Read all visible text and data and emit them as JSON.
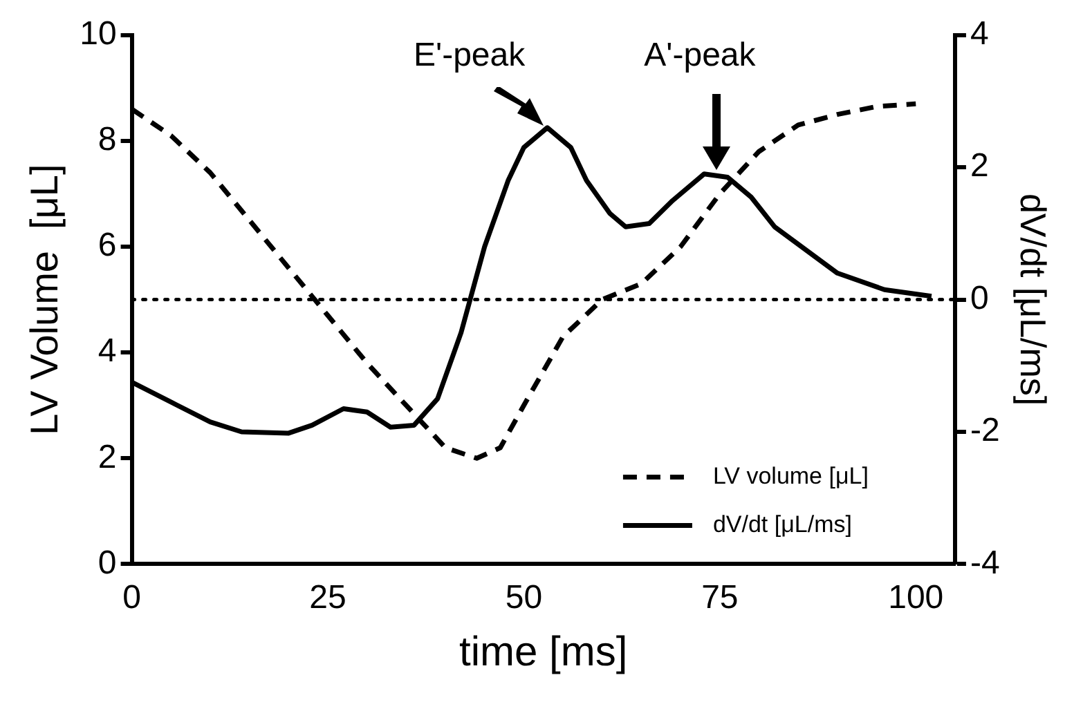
{
  "chart_data": {
    "type": "line",
    "xlabel": "time [ms]",
    "ylabel": "LV Volume  [μL]",
    "y2label": "dV/dt [μL/ms]",
    "xlim": [
      0,
      105
    ],
    "xticks": [
      0,
      25,
      50,
      75,
      100
    ],
    "ylim": [
      0,
      10
    ],
    "yticks": [
      0,
      2,
      4,
      6,
      8,
      10
    ],
    "y2lim": [
      -4,
      4
    ],
    "y2ticks": [
      -4,
      -2,
      0,
      2,
      4
    ],
    "series": [
      {
        "name": "LV volume [μL]",
        "color": "#000000",
        "line_style": "dashed",
        "x": [
          0,
          5,
          10,
          15,
          20,
          25,
          30,
          35,
          40,
          44,
          47,
          50,
          55,
          60,
          65,
          70,
          75,
          80,
          85,
          90,
          95,
          100
        ],
        "values": [
          8.6,
          8.1,
          7.4,
          6.5,
          5.6,
          4.7,
          3.8,
          3.0,
          2.2,
          2.0,
          2.2,
          3.0,
          4.3,
          5.0,
          5.3,
          6.0,
          7.0,
          7.8,
          8.3,
          8.5,
          8.65,
          8.7
        ]
      },
      {
        "name": "dV/dt [μL/ms]",
        "color": "#000000",
        "line_style": "solid",
        "axis": "y2",
        "x": [
          0,
          5,
          10,
          14,
          20,
          23,
          27,
          30,
          33,
          36,
          39,
          42,
          45,
          48,
          50,
          53,
          56,
          58,
          61,
          63,
          66,
          69,
          73,
          76,
          79,
          82,
          86,
          90,
          96,
          102
        ],
        "values": [
          -1.25,
          -1.55,
          -1.85,
          -2.0,
          -2.02,
          -1.9,
          -1.65,
          -1.7,
          -1.93,
          -1.9,
          -1.5,
          -0.5,
          0.8,
          1.8,
          2.3,
          2.6,
          2.3,
          1.8,
          1.3,
          1.1,
          1.15,
          1.5,
          1.9,
          1.85,
          1.55,
          1.1,
          0.75,
          0.4,
          0.15,
          0.05
        ]
      }
    ],
    "ref_lines": [
      {
        "axis": "y2",
        "value": 0,
        "line_style": "dotted"
      }
    ],
    "annotations": [
      "E'-peak",
      "A'-peak"
    ],
    "legend": "bottom right",
    "grid": false,
    "marker": "none"
  }
}
